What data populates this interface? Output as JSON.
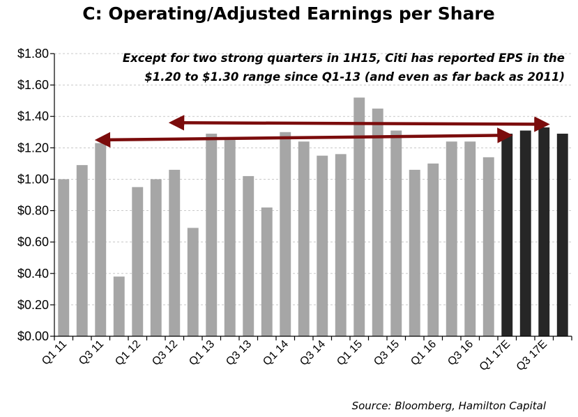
{
  "chart_data": {
    "type": "bar",
    "title": "C: Operating/Adjusted Earnings per Share",
    "annotation": [
      "Except for two strong quarters in 1H15, Citi has reported EPS in the",
      "$1.20 to $1.30 range since Q1-13 (and even as far back as 2011)"
    ],
    "source": "Source: Bloomberg, Hamilton Capital",
    "categories": [
      "Q1 11",
      "Q2 11",
      "Q3 11",
      "Q4 11",
      "Q1 12",
      "Q2 12",
      "Q3 12",
      "Q4 12",
      "Q1 13",
      "Q2 13",
      "Q3 13",
      "Q4 13",
      "Q1 14",
      "Q2 14",
      "Q3 14",
      "Q4 14",
      "Q1 15",
      "Q2 15",
      "Q3 15",
      "Q4 15",
      "Q1 16",
      "Q2 16",
      "Q3 16",
      "Q4 16",
      "Q1 17E",
      "Q2 17E",
      "Q3 17E",
      "Q4 17E"
    ],
    "x_tick_labels": [
      "Q1 11",
      "",
      "Q3 11",
      "",
      "Q1 12",
      "",
      "Q3 12",
      "",
      "Q1 13",
      "",
      "Q3 13",
      "",
      "Q1 14",
      "",
      "Q3 14",
      "",
      "Q1 15",
      "",
      "Q3 15",
      "",
      "Q1 16",
      "",
      "Q3 16",
      "",
      "Q1 17E",
      "",
      "Q3 17E",
      ""
    ],
    "values": [
      1.0,
      1.09,
      1.23,
      0.38,
      0.95,
      1.0,
      1.06,
      0.69,
      1.29,
      1.25,
      1.02,
      0.82,
      1.3,
      1.24,
      1.15,
      1.16,
      1.52,
      1.45,
      1.31,
      1.06,
      1.1,
      1.24,
      1.24,
      1.14,
      1.29,
      1.31,
      1.33,
      1.29
    ],
    "estimate": [
      false,
      false,
      false,
      false,
      false,
      false,
      false,
      false,
      false,
      false,
      false,
      false,
      false,
      false,
      false,
      false,
      false,
      false,
      false,
      false,
      false,
      false,
      false,
      false,
      true,
      true,
      true,
      true
    ],
    "colors": {
      "actual": "#a6a6a6",
      "estimate": "#262626",
      "arrow": "#7b0c0c"
    },
    "ylim": [
      0,
      1.8
    ],
    "yticks": [
      0,
      0.2,
      0.4,
      0.6,
      0.8,
      1.0,
      1.2,
      1.4,
      1.6,
      1.8
    ],
    "ytick_labels": [
      "$0.00",
      "$0.20",
      "$0.40",
      "$0.60",
      "$0.80",
      "$1.00",
      "$1.20",
      "$1.40",
      "$1.60",
      "$1.80"
    ],
    "xlabel": "",
    "ylabel": "",
    "grid": true,
    "arrows": [
      {
        "from_category": "Q3 11",
        "to_category": "Q1 17E",
        "from_value": 1.25,
        "to_value": 1.28
      },
      {
        "from_category": "Q3 12",
        "to_category": "Q3 17E",
        "from_value": 1.36,
        "to_value": 1.35
      }
    ]
  }
}
